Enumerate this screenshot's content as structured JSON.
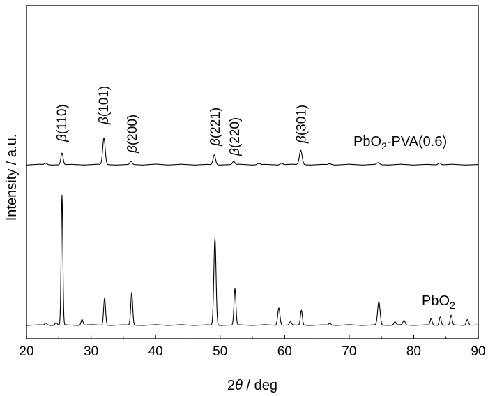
{
  "chart_data": {
    "type": "line",
    "xlabel_prefix": "2",
    "xlabel_theta": "θ",
    "xlabel_suffix": " / deg",
    "ylabel": "Intensity / a.u.",
    "xlim": [
      20,
      90
    ],
    "x_ticks": [
      "20",
      "30",
      "40",
      "50",
      "60",
      "70",
      "80",
      "90"
    ],
    "y_ticks_labeled": false,
    "grid": false,
    "series": [
      {
        "label_main": "PbO",
        "label_sub": "2",
        "label_rest": "",
        "baseline": 0,
        "noise": [
          [
            20,
            0
          ],
          [
            22,
            0.5
          ],
          [
            24,
            0
          ],
          [
            26,
            0.5
          ],
          [
            28,
            0
          ],
          [
            30,
            0.6
          ],
          [
            33,
            0
          ],
          [
            35,
            0.5
          ],
          [
            38,
            0
          ],
          [
            40,
            0.6
          ],
          [
            42,
            0
          ],
          [
            44,
            0.6
          ],
          [
            46,
            0
          ],
          [
            48,
            0.5
          ],
          [
            50,
            0
          ],
          [
            53,
            0.5
          ],
          [
            55,
            0
          ],
          [
            57,
            0.6
          ],
          [
            59,
            0
          ],
          [
            61,
            0.5
          ],
          [
            64,
            0
          ],
          [
            66,
            0.5
          ],
          [
            68,
            0
          ],
          [
            70,
            0.6
          ],
          [
            72,
            0
          ],
          [
            74,
            0.5
          ],
          [
            76,
            0
          ],
          [
            78,
            0.6
          ],
          [
            80,
            0
          ],
          [
            82,
            0.5
          ],
          [
            84,
            0
          ],
          [
            86,
            0.5
          ],
          [
            88,
            0
          ],
          [
            90,
            0.4
          ]
        ],
        "peaks": [
          {
            "x": 23.0,
            "h": 1.5,
            "w": 0.4
          },
          {
            "x": 24.6,
            "h": 2.0,
            "w": 0.4
          },
          {
            "x": 25.5,
            "h": 100,
            "w": 0.3
          },
          {
            "x": 28.6,
            "h": 4.5,
            "w": 0.35
          },
          {
            "x": 32.1,
            "h": 21,
            "w": 0.35
          },
          {
            "x": 36.3,
            "h": 25,
            "w": 0.35
          },
          {
            "x": 49.2,
            "h": 67,
            "w": 0.4
          },
          {
            "x": 52.3,
            "h": 28,
            "w": 0.35
          },
          {
            "x": 59.1,
            "h": 13.5,
            "w": 0.4
          },
          {
            "x": 60.9,
            "h": 2.5,
            "w": 0.35
          },
          {
            "x": 62.6,
            "h": 11.5,
            "w": 0.35
          },
          {
            "x": 67.0,
            "h": 1.5,
            "w": 0.4
          },
          {
            "x": 74.6,
            "h": 18,
            "w": 0.45
          },
          {
            "x": 77.1,
            "h": 2.5,
            "w": 0.4
          },
          {
            "x": 78.5,
            "h": 3.5,
            "w": 0.4
          },
          {
            "x": 82.7,
            "h": 5.0,
            "w": 0.35
          },
          {
            "x": 84.1,
            "h": 6.5,
            "w": 0.35
          },
          {
            "x": 85.8,
            "h": 7.5,
            "w": 0.35
          },
          {
            "x": 88.3,
            "h": 4.5,
            "w": 0.4
          }
        ]
      },
      {
        "label_main": "PbO",
        "label_sub": "2",
        "label_rest": "-PVA(0.6)",
        "baseline": 123.5,
        "noise": [
          [
            20,
            0
          ],
          [
            22,
            0.6
          ],
          [
            24,
            0
          ],
          [
            27,
            0.5
          ],
          [
            29,
            0
          ],
          [
            31,
            0.6
          ],
          [
            34,
            0
          ],
          [
            36,
            0.5
          ],
          [
            38,
            0
          ],
          [
            40,
            0.7
          ],
          [
            42,
            0
          ],
          [
            44,
            0.6
          ],
          [
            46,
            0
          ],
          [
            48,
            0.5
          ],
          [
            50,
            0
          ],
          [
            53,
            0.6
          ],
          [
            55,
            0
          ],
          [
            57,
            0.5
          ],
          [
            59,
            0
          ],
          [
            61,
            0.6
          ],
          [
            64,
            0
          ],
          [
            66,
            0.5
          ],
          [
            68,
            0
          ],
          [
            70,
            0.6
          ],
          [
            72,
            0
          ],
          [
            74,
            0.5
          ],
          [
            76,
            0
          ],
          [
            78,
            0.6
          ],
          [
            80,
            0
          ],
          [
            82,
            0.5
          ],
          [
            84,
            0
          ],
          [
            86,
            0.6
          ],
          [
            88,
            0
          ],
          [
            90,
            0.4
          ]
        ],
        "peaks": [
          {
            "x": 23.0,
            "h": 1.0,
            "w": 0.5
          },
          {
            "x": 25.5,
            "h": 9.0,
            "w": 0.4
          },
          {
            "x": 32.0,
            "h": 20.5,
            "w": 0.45
          },
          {
            "x": 36.2,
            "h": 2.5,
            "w": 0.4
          },
          {
            "x": 49.1,
            "h": 7.5,
            "w": 0.45
          },
          {
            "x": 52.1,
            "h": 2.5,
            "w": 0.4
          },
          {
            "x": 56.0,
            "h": 1.0,
            "w": 0.5
          },
          {
            "x": 59.5,
            "h": 1.2,
            "w": 0.5
          },
          {
            "x": 62.5,
            "h": 11.0,
            "w": 0.5
          },
          {
            "x": 67.0,
            "h": 0.8,
            "w": 0.5
          },
          {
            "x": 74.5,
            "h": 1.5,
            "w": 0.5
          },
          {
            "x": 84.0,
            "h": 1.5,
            "w": 0.5
          }
        ]
      }
    ],
    "peak_labels": [
      {
        "beta": "β",
        "hkl": "(110)",
        "x": 25.5
      },
      {
        "beta": "β",
        "hkl": "(101)",
        "x": 32.0
      },
      {
        "beta": "β",
        "hkl": "(200)",
        "x": 36.4
      },
      {
        "beta": "β",
        "hkl": "(221)",
        "x": 49.3
      },
      {
        "beta": "β",
        "hkl": "(220)",
        "x": 52.3
      },
      {
        "beta": "β",
        "hkl": "(301)",
        "x": 62.6
      }
    ]
  }
}
